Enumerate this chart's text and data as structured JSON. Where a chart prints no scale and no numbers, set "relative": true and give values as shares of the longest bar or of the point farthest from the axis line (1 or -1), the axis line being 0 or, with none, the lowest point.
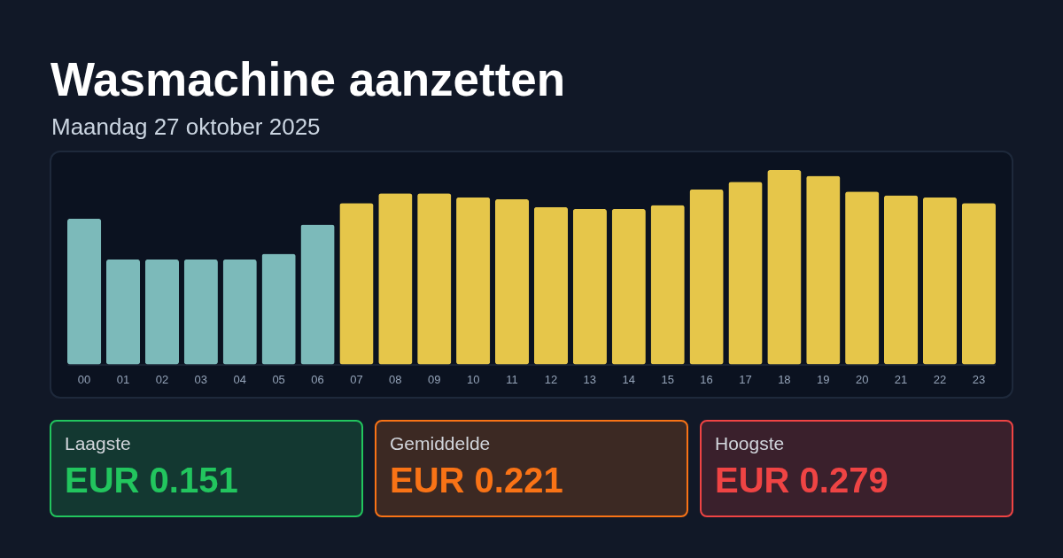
{
  "chart_data": [
    {
      "type": "bar",
      "title": "Wasmachine aanzetten",
      "subtitle": "Maandag 27 oktober 2025",
      "relative": true,
      "categories": [
        "00",
        "01",
        "02",
        "03",
        "04",
        "05",
        "06",
        "07",
        "08",
        "09",
        "10",
        "11",
        "12",
        "13",
        "14",
        "15",
        "16",
        "17",
        "18",
        "19",
        "20",
        "21",
        "22",
        "23"
      ],
      "values": [
        0.75,
        0.54,
        0.54,
        0.54,
        0.54,
        0.57,
        0.72,
        0.83,
        0.88,
        0.88,
        0.86,
        0.85,
        0.81,
        0.8,
        0.8,
        0.82,
        0.9,
        0.94,
        1,
        0.97,
        0.89,
        0.87,
        0.86,
        0.83
      ],
      "colors": [
        "#7cbaba",
        "#7cbaba",
        "#7cbaba",
        "#7cbaba",
        "#7cbaba",
        "#7cbaba",
        "#7cbaba",
        "#e6c64a",
        "#e6c64a",
        "#e6c64a",
        "#e6c64a",
        "#e6c64a",
        "#e6c64a",
        "#e6c64a",
        "#e6c64a",
        "#e6c64a",
        "#e6c64a",
        "#e6c64a",
        "#e6c64a",
        "#e6c64a",
        "#e6c64a",
        "#e6c64a",
        "#e6c64a",
        "#e6c64a"
      ]
    },
    {
      "type": "other",
      "title": "Laagste",
      "annotations": [
        "EUR 0.151"
      ],
      "color": "#22c55e"
    },
    {
      "type": "other",
      "title": "Gemiddelde",
      "annotations": [
        "EUR 0.221"
      ],
      "color": "#f97316"
    },
    {
      "type": "other",
      "title": "Hoogste",
      "annotations": [
        "EUR 0.279"
      ],
      "color": "#ef4444"
    }
  ]
}
